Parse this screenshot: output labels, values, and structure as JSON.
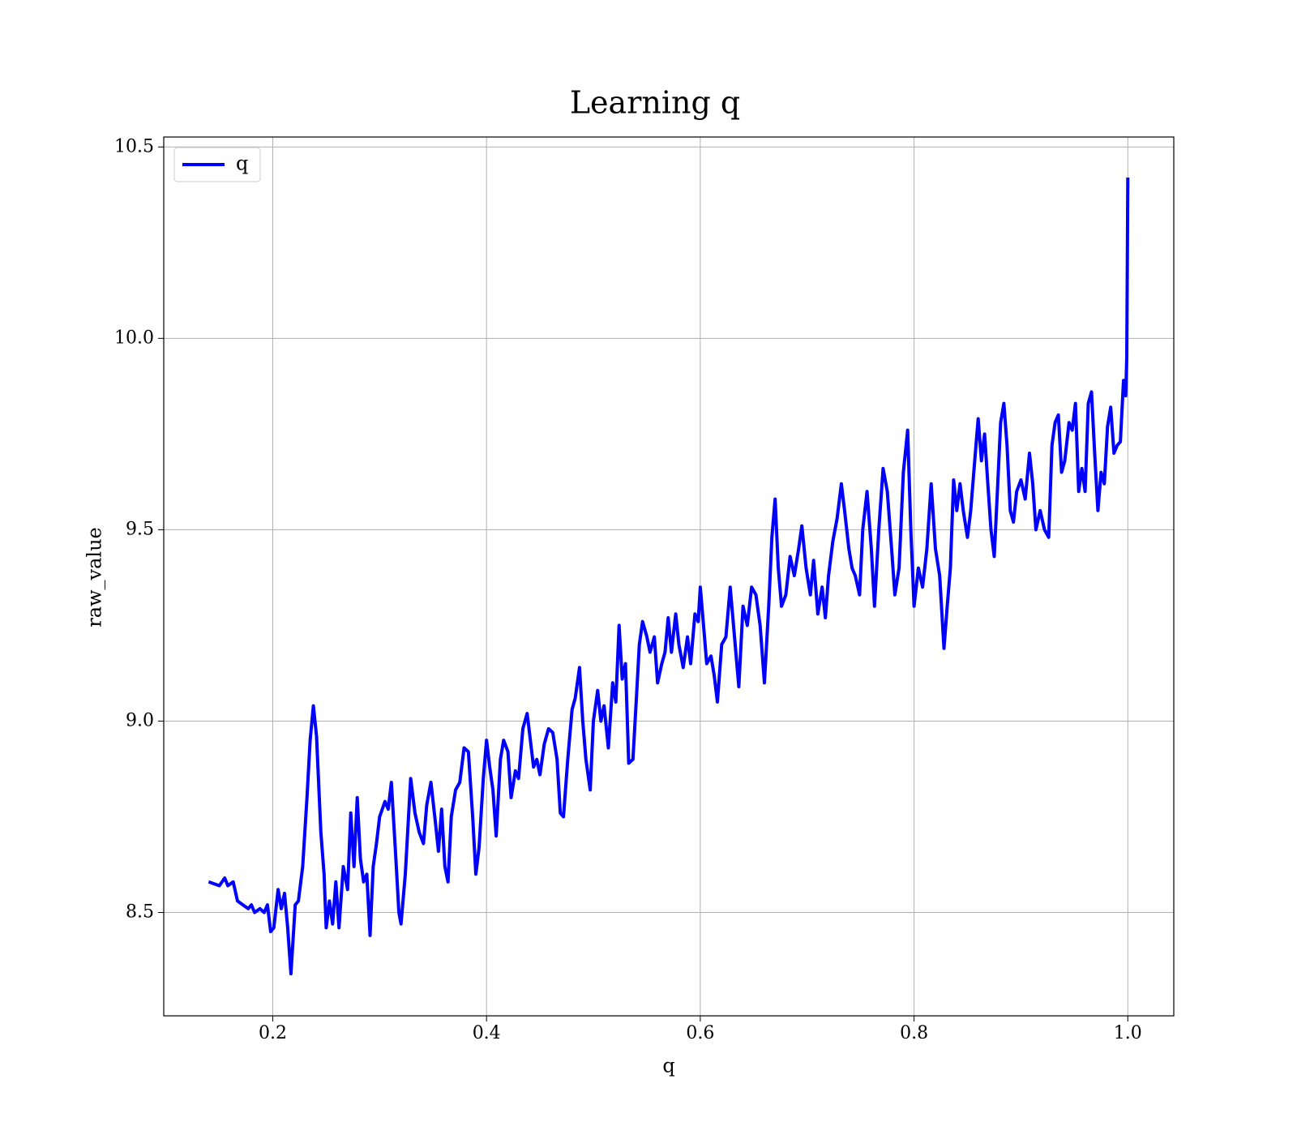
{
  "chart_data": {
    "type": "line",
    "title": "Learning q",
    "xlabel": "q",
    "ylabel": "raw_value",
    "xlim": [
      0.098,
      1.043
    ],
    "ylim": [
      8.23,
      10.526
    ],
    "xticks": [
      0.2,
      0.4,
      0.6,
      0.8,
      {
        "value": 1.0,
        "label": "1.0"
      }
    ],
    "yticks": [
      8.5,
      {
        "value": 9.0,
        "label": "9.0"
      },
      9.5,
      {
        "value": 10.0,
        "label": "10.0"
      },
      10.5
    ],
    "grid": true,
    "legend": "upper left",
    "x": [
      0.14,
      0.15,
      0.155,
      0.158,
      0.163,
      0.167,
      0.172,
      0.177,
      0.18,
      0.183,
      0.188,
      0.192,
      0.195,
      0.198,
      0.201,
      0.205,
      0.208,
      0.211,
      0.214,
      0.217,
      0.221,
      0.224,
      0.228,
      0.232,
      0.235,
      0.238,
      0.241,
      0.245,
      0.248,
      0.25,
      0.253,
      0.256,
      0.259,
      0.262,
      0.266,
      0.27,
      0.273,
      0.276,
      0.279,
      0.282,
      0.285,
      0.288,
      0.291,
      0.294,
      0.297,
      0.3,
      0.305,
      0.308,
      0.311,
      0.315,
      0.318,
      0.32,
      0.324,
      0.329,
      0.333,
      0.337,
      0.341,
      0.344,
      0.348,
      0.352,
      0.355,
      0.358,
      0.361,
      0.364,
      0.367,
      0.371,
      0.375,
      0.379,
      0.383,
      0.387,
      0.39,
      0.393,
      0.397,
      0.4,
      0.403,
      0.406,
      0.409,
      0.413,
      0.416,
      0.42,
      0.423,
      0.427,
      0.43,
      0.434,
      0.438,
      0.441,
      0.444,
      0.447,
      0.45,
      0.454,
      0.458,
      0.462,
      0.466,
      0.469,
      0.472,
      0.476,
      0.48,
      0.483,
      0.487,
      0.49,
      0.493,
      0.497,
      0.5,
      0.504,
      0.507,
      0.51,
      0.514,
      0.518,
      0.521,
      0.524,
      0.527,
      0.53,
      0.533,
      0.537,
      0.54,
      0.543,
      0.546,
      0.55,
      0.553,
      0.557,
      0.56,
      0.564,
      0.567,
      0.57,
      0.573,
      0.577,
      0.58,
      0.584,
      0.588,
      0.591,
      0.595,
      0.598,
      0.6,
      0.603,
      0.606,
      0.61,
      0.613,
      0.616,
      0.62,
      0.624,
      0.628,
      0.632,
      0.636,
      0.64,
      0.644,
      0.648,
      0.652,
      0.656,
      0.66,
      0.664,
      0.667,
      0.67,
      0.673,
      0.676,
      0.68,
      0.684,
      0.688,
      0.692,
      0.695,
      0.699,
      0.703,
      0.706,
      0.71,
      0.714,
      0.717,
      0.72,
      0.724,
      0.728,
      0.732,
      0.735,
      0.739,
      0.742,
      0.745,
      0.749,
      0.752,
      0.756,
      0.76,
      0.763,
      0.767,
      0.771,
      0.775,
      0.779,
      0.782,
      0.786,
      0.79,
      0.794,
      0.797,
      0.8,
      0.804,
      0.808,
      0.812,
      0.816,
      0.82,
      0.824,
      0.828,
      0.831,
      0.834,
      0.837,
      0.84,
      0.843,
      0.846,
      0.85,
      0.853,
      0.857,
      0.86,
      0.863,
      0.866,
      0.869,
      0.872,
      0.875,
      0.878,
      0.881,
      0.884,
      0.887,
      0.89,
      0.893,
      0.896,
      0.9,
      0.904,
      0.908,
      0.911,
      0.914,
      0.918,
      0.922,
      0.926,
      0.929,
      0.932,
      0.935,
      0.938,
      0.941,
      0.945,
      0.948,
      0.951,
      0.954,
      0.957,
      0.96,
      0.963,
      0.966,
      0.969,
      0.972,
      0.975,
      0.978,
      0.981,
      0.984,
      0.987,
      0.99,
      0.993,
      0.996,
      0.998,
      0.999,
      1.0
    ],
    "series": [
      {
        "name": "q",
        "color": "#0000ff",
        "values": [
          8.58,
          8.57,
          8.59,
          8.57,
          8.58,
          8.53,
          8.52,
          8.51,
          8.52,
          8.5,
          8.51,
          8.5,
          8.52,
          8.45,
          8.46,
          8.56,
          8.51,
          8.55,
          8.46,
          8.34,
          8.52,
          8.53,
          8.62,
          8.8,
          8.95,
          9.04,
          8.96,
          8.71,
          8.6,
          8.46,
          8.53,
          8.47,
          8.58,
          8.46,
          8.62,
          8.56,
          8.76,
          8.62,
          8.8,
          8.64,
          8.58,
          8.6,
          8.44,
          8.62,
          8.68,
          8.75,
          8.79,
          8.77,
          8.84,
          8.65,
          8.5,
          8.47,
          8.6,
          8.85,
          8.76,
          8.71,
          8.68,
          8.78,
          8.84,
          8.74,
          8.66,
          8.77,
          8.62,
          8.58,
          8.75,
          8.82,
          8.84,
          8.93,
          8.92,
          8.75,
          8.6,
          8.67,
          8.85,
          8.95,
          8.88,
          8.82,
          8.7,
          8.9,
          8.95,
          8.92,
          8.8,
          8.87,
          8.85,
          8.98,
          9.02,
          8.95,
          8.88,
          8.9,
          8.86,
          8.94,
          8.98,
          8.97,
          8.9,
          8.76,
          8.75,
          8.9,
          9.03,
          9.06,
          9.14,
          9.0,
          8.9,
          8.82,
          9.0,
          9.08,
          9.0,
          9.04,
          8.93,
          9.1,
          9.05,
          9.25,
          9.11,
          9.15,
          8.89,
          8.9,
          9.05,
          9.2,
          9.26,
          9.22,
          9.18,
          9.22,
          9.1,
          9.15,
          9.18,
          9.27,
          9.18,
          9.28,
          9.2,
          9.14,
          9.22,
          9.15,
          9.28,
          9.26,
          9.35,
          9.25,
          9.15,
          9.17,
          9.12,
          9.05,
          9.2,
          9.22,
          9.35,
          9.22,
          9.09,
          9.3,
          9.25,
          9.35,
          9.33,
          9.25,
          9.1,
          9.3,
          9.48,
          9.58,
          9.4,
          9.3,
          9.33,
          9.43,
          9.38,
          9.45,
          9.51,
          9.4,
          9.33,
          9.42,
          9.28,
          9.35,
          9.27,
          9.38,
          9.47,
          9.53,
          9.62,
          9.55,
          9.45,
          9.4,
          9.38,
          9.33,
          9.5,
          9.6,
          9.45,
          9.3,
          9.5,
          9.66,
          9.6,
          9.45,
          9.33,
          9.4,
          9.65,
          9.76,
          9.5,
          9.3,
          9.4,
          9.35,
          9.45,
          9.62,
          9.45,
          9.38,
          9.19,
          9.3,
          9.4,
          9.63,
          9.55,
          9.62,
          9.55,
          9.48,
          9.55,
          9.69,
          9.79,
          9.68,
          9.75,
          9.62,
          9.5,
          9.43,
          9.6,
          9.78,
          9.83,
          9.72,
          9.55,
          9.52,
          9.6,
          9.63,
          9.58,
          9.7,
          9.62,
          9.5,
          9.55,
          9.5,
          9.48,
          9.72,
          9.78,
          9.8,
          9.65,
          9.68,
          9.78,
          9.76,
          9.83,
          9.6,
          9.66,
          9.6,
          9.83,
          9.86,
          9.7,
          9.55,
          9.65,
          9.62,
          9.77,
          9.82,
          9.7,
          9.72,
          9.73,
          9.89,
          9.85,
          9.95,
          10.42
        ]
      }
    ]
  }
}
